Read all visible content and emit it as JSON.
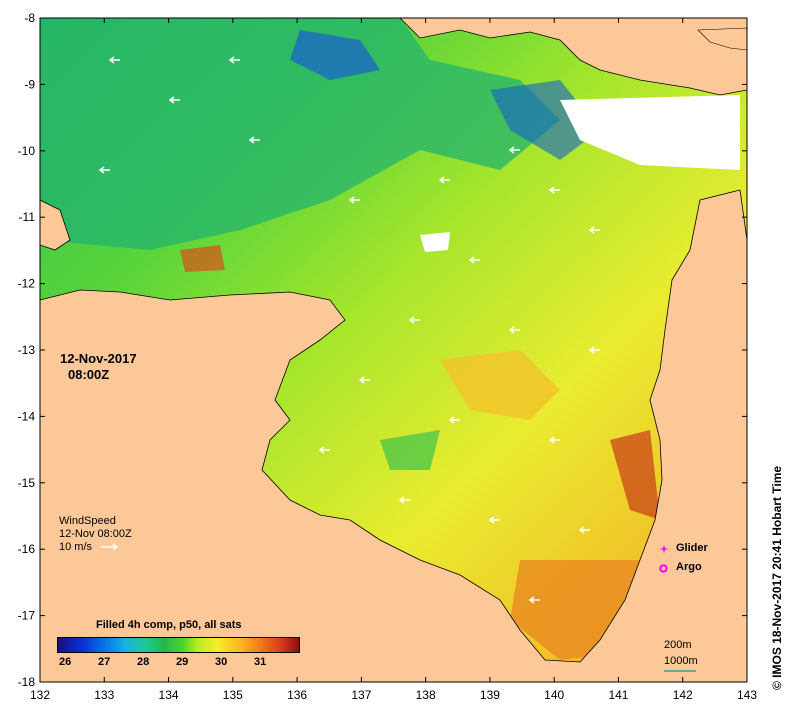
{
  "map": {
    "x_ticks": [
      "132",
      "133",
      "134",
      "135",
      "136",
      "137",
      "138",
      "139",
      "140",
      "141",
      "142",
      "143"
    ],
    "y_ticks": [
      "-8",
      "-9",
      "-10",
      "-11",
      "-12",
      "-13",
      "-14",
      "-15",
      "-16",
      "-17",
      "-18"
    ],
    "land_color": "#fcc898",
    "no_data_color": "#ffffff"
  },
  "timestamp": {
    "date": "12-Nov-2017",
    "time": "08:00Z"
  },
  "wind": {
    "title": "WindSpeed",
    "time": "12-Nov 08:00Z",
    "scale": "10 m/s"
  },
  "colorbar": {
    "title": "Filled 4h comp, p50, all sats",
    "ticks": [
      "26",
      "27",
      "28",
      "29",
      "30",
      "31"
    ],
    "colors": [
      "#1a0f82",
      "#0a78e8",
      "#1fc896",
      "#4fd62a",
      "#f5ee28",
      "#f27a18",
      "#8c1010"
    ]
  },
  "legend": {
    "glider": "Glider",
    "glider_color": "#ff00ff",
    "argo": "Argo",
    "argo_color": "#ff00ff"
  },
  "depth": {
    "contour_200": "200m",
    "contour_1000": "1000m",
    "contour_1000_color": "#00a08c"
  },
  "credit": "© IMOS 18-Nov-2017 20:41 Hobart Time"
}
